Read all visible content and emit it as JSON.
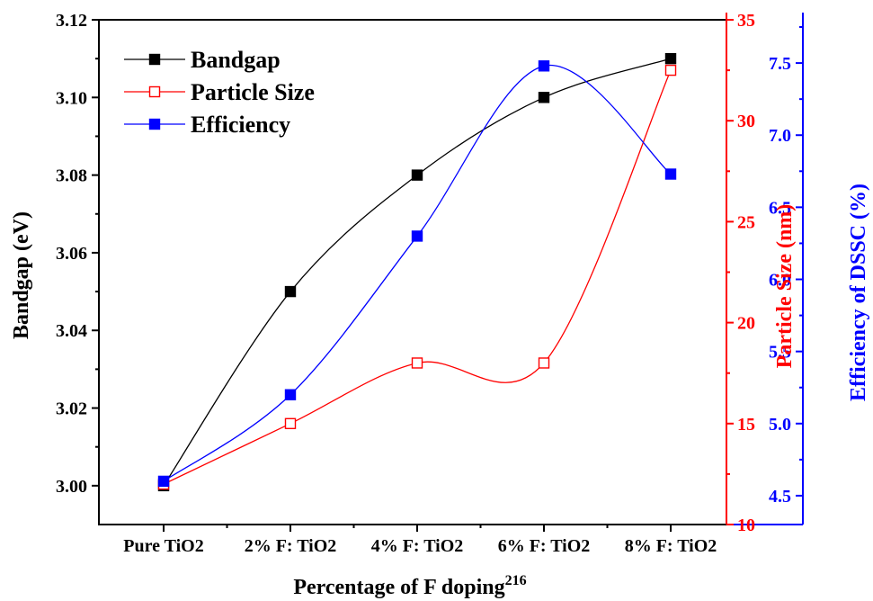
{
  "chart_data": {
    "type": "line",
    "categories": [
      "Pure TiO2",
      "2% F: TiO2",
      "4% F: TiO2",
      "6% F: TiO2",
      "8% F: TiO2"
    ],
    "xlabel": "Percentage of F doping",
    "xlabel_superscript": "216",
    "series": [
      {
        "name": "Bandgap",
        "axis": "left",
        "color": "#000000",
        "marker": "filled-square",
        "values": [
          3.0,
          3.05,
          3.08,
          3.1,
          3.11
        ]
      },
      {
        "name": "Particle Size",
        "axis": "right-inner",
        "color": "#ff0000",
        "marker": "open-square",
        "values": [
          12,
          15,
          18,
          18,
          32.5
        ]
      },
      {
        "name": "Efficiency",
        "axis": "right-outer",
        "color": "#0000ff",
        "marker": "filled-square",
        "values": [
          4.6,
          5.2,
          6.3,
          7.48,
          6.73
        ]
      }
    ],
    "axes": {
      "left": {
        "label": "Bandgap (eV)",
        "color": "#000000",
        "ylim": [
          2.99,
          3.12
        ],
        "ticks": [
          3.0,
          3.02,
          3.04,
          3.06,
          3.08,
          3.1,
          3.12
        ],
        "tick_labels": [
          "3.00",
          "3.02",
          "3.04",
          "3.06",
          "3.08",
          "3.10",
          "3.12"
        ]
      },
      "right_inner": {
        "label": "Particle Size (nm)",
        "color": "#ff0000",
        "ylim": [
          10,
          35
        ],
        "ticks": [
          10,
          15,
          20,
          25,
          30,
          35
        ],
        "tick_labels": [
          "10",
          "15",
          "20",
          "25",
          "30",
          "35"
        ]
      },
      "right_outer": {
        "label": "Efficiency of DSSC (%)",
        "color": "#0000ff",
        "ylim": [
          4.3,
          7.8
        ],
        "ticks": [
          4.5,
          5.0,
          5.5,
          6.0,
          6.5,
          7.0,
          7.5
        ],
        "tick_labels": [
          "4.5",
          "5.0",
          "5.5",
          "6.0",
          "6.5",
          "7.0",
          "7.5"
        ]
      }
    },
    "legend": {
      "placement": "top-left",
      "entries": [
        "Bandgap",
        "Particle Size",
        "Efficiency"
      ]
    },
    "grid": false
  }
}
